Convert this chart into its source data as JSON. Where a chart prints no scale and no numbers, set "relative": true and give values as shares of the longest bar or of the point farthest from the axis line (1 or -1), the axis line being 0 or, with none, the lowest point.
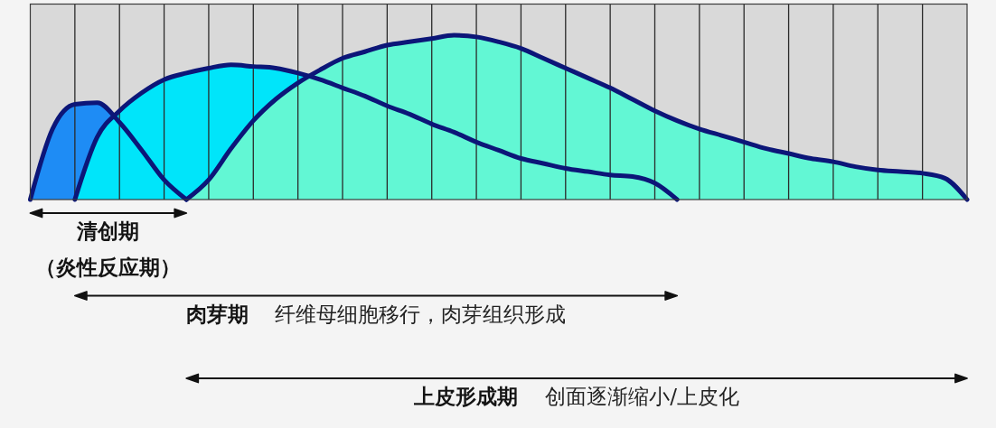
{
  "chart_data": {
    "type": "area",
    "relative": true,
    "categories": [
      null,
      null,
      null,
      null,
      null,
      null,
      null,
      null,
      null,
      null,
      null,
      null,
      null,
      null,
      null,
      null,
      null,
      null,
      null,
      null,
      null,
      null,
      null,
      null,
      null,
      null,
      null,
      null,
      null,
      null,
      null,
      null,
      null,
      null,
      null,
      null,
      null,
      null,
      null,
      null,
      null,
      null,
      null
    ],
    "grid": "x",
    "series": [
      {
        "color": "#1e8cf5",
        "values": [
          0,
          0.43,
          0.58,
          0.59,
          0.47,
          0.3,
          0.12,
          0,
          null,
          null,
          null,
          null,
          null,
          null,
          null,
          null,
          null,
          null,
          null,
          null,
          null,
          null,
          null,
          null,
          null,
          null,
          null,
          null,
          null,
          null,
          null,
          null,
          null,
          null,
          null,
          null,
          null,
          null,
          null,
          null,
          null,
          null,
          null
        ]
      },
      {
        "color": "#00e5fa",
        "values": [
          null,
          null,
          0,
          0.38,
          0.54,
          0.65,
          0.73,
          0.77,
          0.8,
          0.82,
          0.81,
          0.8,
          0.77,
          0.73,
          0.68,
          0.63,
          0.57,
          0.52,
          0.46,
          0.41,
          0.35,
          0.3,
          0.25,
          0.22,
          0.19,
          0.17,
          0.15,
          0.14,
          0.1,
          0,
          null,
          null,
          null,
          null,
          null,
          null,
          null,
          null,
          null,
          null,
          null,
          null,
          null
        ]
      },
      {
        "color": "#62f7d4",
        "values": [
          null,
          null,
          null,
          null,
          null,
          null,
          null,
          0,
          0.12,
          0.31,
          0.48,
          0.61,
          0.71,
          0.79,
          0.86,
          0.9,
          0.94,
          0.96,
          0.98,
          1,
          0.99,
          0.96,
          0.92,
          0.86,
          0.8,
          0.74,
          0.68,
          0.61,
          0.54,
          0.48,
          0.43,
          0.39,
          0.35,
          0.31,
          0.28,
          0.25,
          0.23,
          0.2,
          0.18,
          0.17,
          0.16,
          0.13,
          0
        ]
      }
    ],
    "annotations": [
      "**清创期（炎性反应期）**",
      "**肉芽期** 纤维母细胞移行，肉芽组织形成",
      "**上皮形成期** 创面逐渐缩小/上皮化"
    ]
  }
}
